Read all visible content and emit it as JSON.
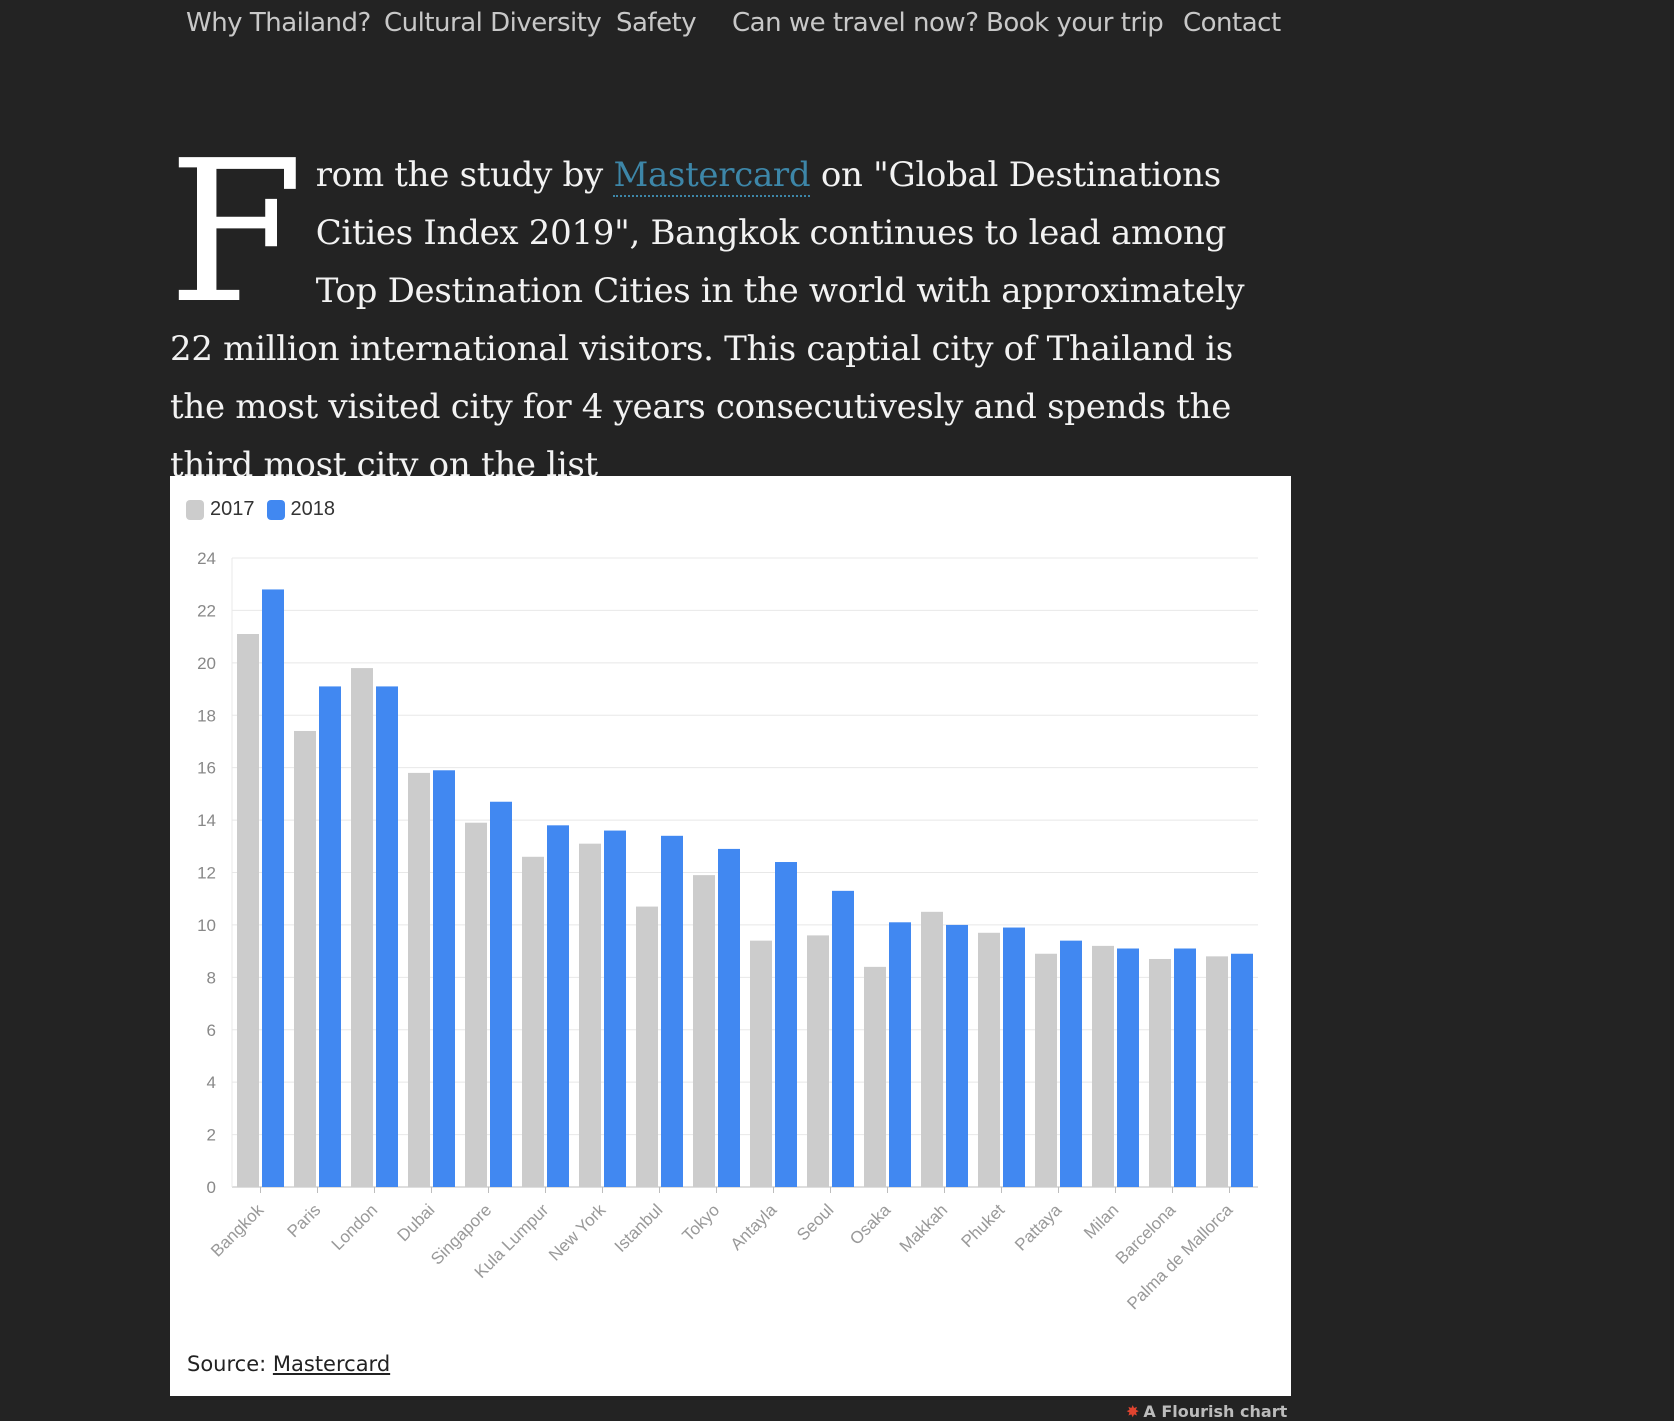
{
  "nav": {
    "items": [
      "Why Thailand?",
      "Cultural Diversity",
      "Safety",
      "Can we travel now?",
      "Book your trip",
      "Contact"
    ]
  },
  "article": {
    "dropcap": "F",
    "text_before_link": "rom the study by ",
    "link_text": "Mastercard",
    "text_after_link": " on \"Global Destinations Cities Index 2019\", Bangkok continues to lead among Top Destination Cities in the world with approximately 22 million international visitors. This captial city of Thailand is the most visited city for 4 years consecutivesly and spends the third most city on the list"
  },
  "chart": {
    "source_label": "Source: ",
    "source_link": "Mastercard",
    "footer": "A Flourish chart",
    "footer_icon": "flourish-icon"
  },
  "colors": {
    "series_2017": "#cccccc",
    "series_2018": "#4188f1",
    "link": "#3d86a8",
    "background": "#232323"
  },
  "chart_data": {
    "type": "bar",
    "categories": [
      "Bangkok",
      "Paris",
      "London",
      "Dubai",
      "Singapore",
      "Kula Lumpur",
      "New York",
      "Istanbul",
      "Tokyo",
      "Antayla",
      "Seoul",
      "Osaka",
      "Makkah",
      "Phuket",
      "Pattaya",
      "Milan",
      "Barcelona",
      "Palma de Mallorca"
    ],
    "series": [
      {
        "name": "2017",
        "values": [
          21.1,
          17.4,
          19.8,
          15.8,
          13.9,
          12.6,
          13.1,
          10.7,
          11.9,
          9.4,
          9.6,
          8.4,
          10.5,
          9.7,
          8.9,
          9.2,
          8.7,
          8.8
        ]
      },
      {
        "name": "2018",
        "values": [
          22.8,
          19.1,
          19.1,
          15.9,
          14.7,
          13.8,
          13.6,
          13.4,
          12.9,
          12.4,
          11.3,
          10.1,
          10.0,
          9.9,
          9.4,
          9.1,
          9.1,
          8.9
        ]
      }
    ],
    "yticks": [
      0,
      2,
      4,
      6,
      8,
      10,
      12,
      14,
      16,
      18,
      20,
      22,
      24
    ],
    "ylim": [
      0,
      24
    ],
    "legend": "top-left",
    "grid": true,
    "xlabel": "",
    "ylabel": ""
  }
}
